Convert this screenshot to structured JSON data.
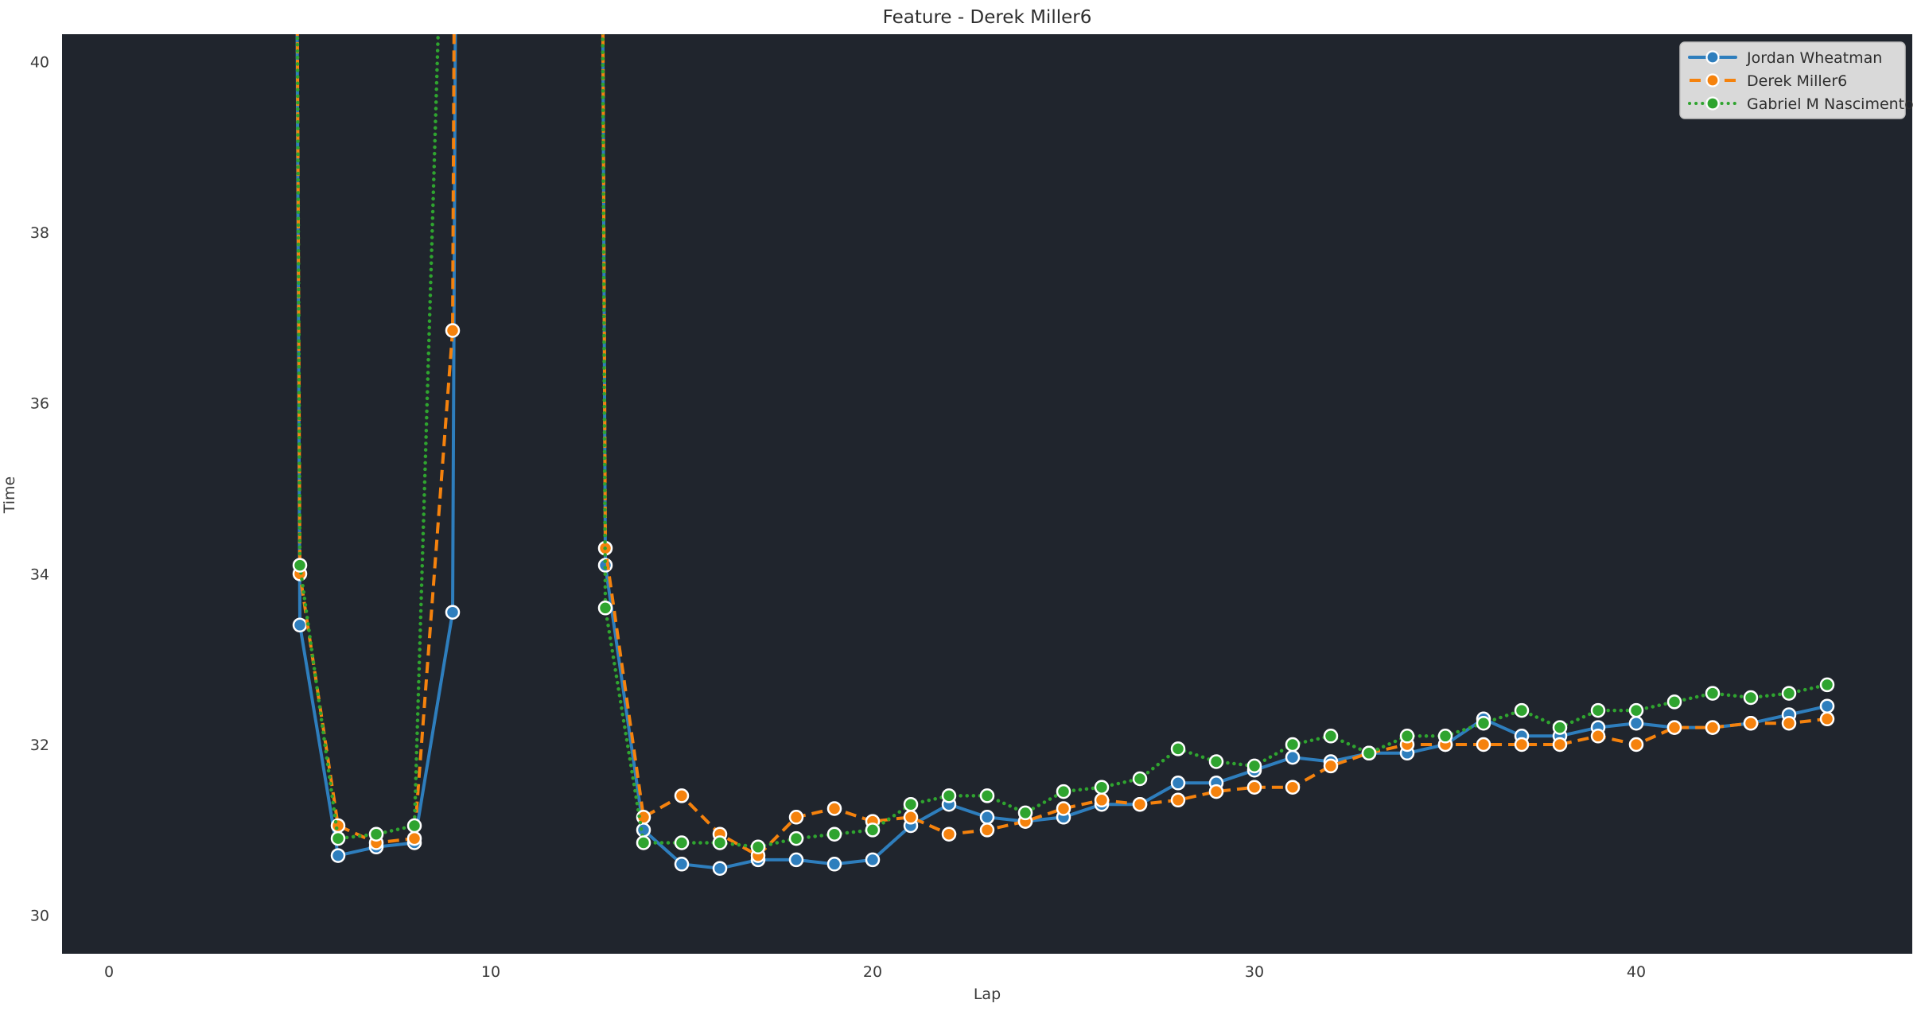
{
  "colors": {
    "figure_bg": "#ffffff",
    "plot_bg": "#20252d",
    "title_text": "#2e2e2e",
    "tick_text": "#3a3a3a",
    "axis_label_text": "#3a3a3a",
    "marker_edge": "#ffffff",
    "legend_bg": "#d9d9d9",
    "legend_border": "#c2c2c2",
    "legend_text": "#2f2f2f"
  },
  "chart_data": {
    "type": "line",
    "title": "Feature - Derek Miller6",
    "xlabel": "Lap",
    "ylabel": "Time",
    "xlim": [
      -1.23,
      47.23
    ],
    "ylim": [
      29.55,
      40.32
    ],
    "xticks": [
      0,
      10,
      20,
      30,
      40
    ],
    "yticks": [
      30,
      32,
      34,
      36,
      38,
      40
    ],
    "grid": false,
    "legend_position": "upper right",
    "offscale_placeholder": 130,
    "x": [
      4,
      5,
      6,
      7,
      8,
      9,
      10,
      11,
      12,
      13,
      14,
      15,
      16,
      17,
      18,
      19,
      20,
      21,
      22,
      23,
      24,
      25,
      26,
      27,
      28,
      29,
      30,
      31,
      32,
      33,
      34,
      35,
      36,
      37,
      38,
      39,
      40,
      41,
      42,
      43,
      44,
      45
    ],
    "series": [
      {
        "name": "Jordan Wheatman",
        "color": "#2e7ebd",
        "line_style": "solid",
        "values": [
          null,
          33.4,
          30.7,
          30.8,
          30.85,
          33.55,
          null,
          null,
          null,
          34.1,
          31.0,
          30.6,
          30.55,
          30.65,
          30.65,
          30.6,
          30.65,
          31.05,
          31.3,
          31.15,
          31.1,
          31.15,
          31.3,
          31.3,
          31.55,
          31.55,
          31.7,
          31.85,
          31.8,
          31.9,
          31.9,
          32.0,
          32.3,
          32.1,
          32.1,
          32.2,
          32.25,
          32.2,
          32.2,
          32.25,
          32.35,
          32.45
        ]
      },
      {
        "name": "Derek Miller6",
        "color": "#f5820d",
        "line_style": "dashed",
        "values": [
          null,
          34.0,
          31.05,
          30.85,
          30.9,
          36.85,
          null,
          null,
          null,
          34.3,
          31.15,
          31.4,
          30.95,
          30.7,
          31.15,
          31.25,
          31.1,
          31.15,
          30.95,
          31.0,
          31.1,
          31.25,
          31.35,
          31.3,
          31.35,
          31.45,
          31.5,
          31.5,
          31.75,
          31.9,
          32.0,
          32.0,
          32.0,
          32.0,
          32.0,
          32.1,
          32.0,
          32.2,
          32.2,
          32.25,
          32.25,
          32.3
        ]
      },
      {
        "name": "Gabriel M Nascimento",
        "color": "#2fa42f",
        "line_style": "dotted",
        "values": [
          null,
          34.1,
          30.9,
          30.95,
          31.05,
          46,
          null,
          null,
          null,
          33.6,
          30.85,
          30.85,
          30.85,
          30.8,
          30.9,
          30.95,
          31.0,
          31.3,
          31.4,
          31.4,
          31.2,
          31.45,
          31.5,
          31.6,
          31.95,
          31.8,
          31.75,
          32.0,
          32.1,
          31.9,
          32.1,
          32.1,
          32.25,
          32.4,
          32.2,
          32.4,
          32.4,
          32.5,
          32.6,
          32.55,
          32.6,
          32.7
        ]
      }
    ]
  }
}
